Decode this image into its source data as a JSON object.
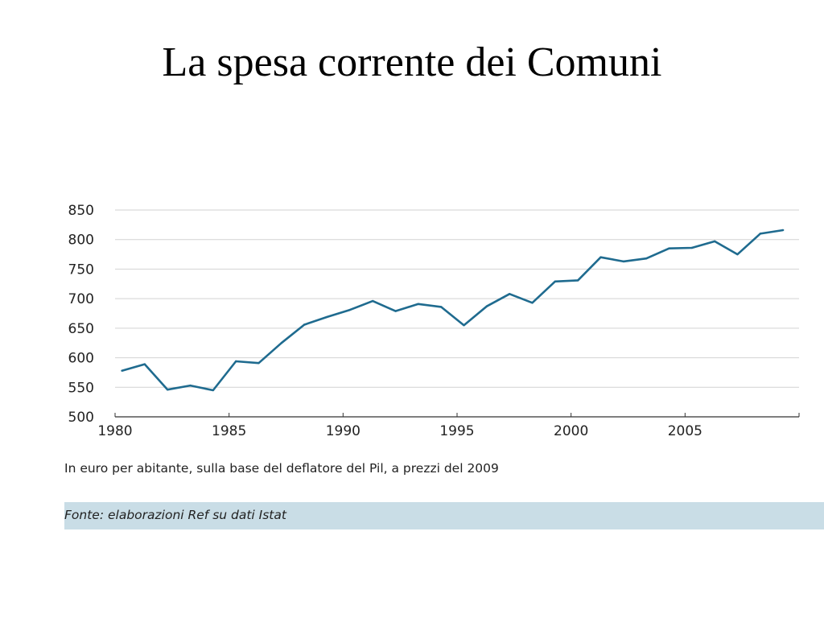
{
  "slide": {
    "title": "La spesa corrente dei Comuni"
  },
  "caption": "In euro per abitante, sulla base del deflatore del Pil, a prezzi del 2009",
  "source": "Fonte: elaborazioni Ref su dati Istat",
  "chart_data": {
    "type": "line",
    "title": "",
    "xlabel": "",
    "ylabel": "",
    "xlim": [
      1980,
      2010
    ],
    "ylim": [
      500,
      850
    ],
    "x_ticks": [
      1980,
      1985,
      1990,
      1995,
      2000,
      2005
    ],
    "y_ticks": [
      500,
      550,
      600,
      650,
      700,
      750,
      800,
      850
    ],
    "grid": "horizontal",
    "line_color": "#1f6b8f",
    "series": [
      {
        "x": [
          1980.3,
          1981.3,
          1982.3,
          1983.3,
          1984.3,
          1985.3,
          1986.3,
          1987.3,
          1988.3,
          1989.3,
          1990.3,
          1991.3,
          1992.3,
          1993.3,
          1994.3,
          1995.3,
          1996.3,
          1997.3,
          1998.3,
          1999.3,
          2000.3,
          2001.3,
          2002.3,
          2003.3,
          2004.3,
          2005.3,
          2006.3,
          2007.3,
          2008.3,
          2009.3
        ],
        "values": [
          578,
          589,
          546,
          553,
          545,
          594,
          591,
          625,
          656,
          669,
          681,
          696,
          679,
          691,
          686,
          655,
          687,
          708,
          693,
          729,
          731,
          770,
          763,
          768,
          785,
          786,
          797,
          775,
          810,
          816
        ]
      }
    ]
  }
}
